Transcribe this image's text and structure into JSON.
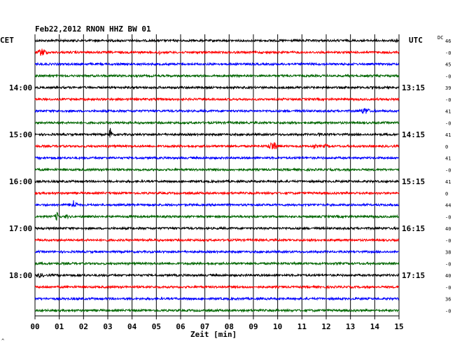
{
  "chart_data": {
    "type": "line",
    "title": "Feb22,2012   RNON HHZ BW 01",
    "xlabel": "Zeit [min]",
    "x_ticks": [
      "00",
      "01",
      "02",
      "03",
      "04",
      "05",
      "06",
      "07",
      "08",
      "09",
      "10",
      "11",
      "12",
      "13",
      "14",
      "15"
    ],
    "xlim": [
      0,
      15
    ],
    "left_axis_title": "CET",
    "right_axis_title": "UTC",
    "dc_header": "DC",
    "left_hour_labels": [
      {
        "row": 4,
        "label": "14:00"
      },
      {
        "row": 8,
        "label": "15:00"
      },
      {
        "row": 12,
        "label": "16:00"
      },
      {
        "row": 16,
        "label": "17:00"
      },
      {
        "row": 20,
        "label": "18:00"
      }
    ],
    "right_hour_labels": [
      {
        "row": 4,
        "label": "13:15"
      },
      {
        "row": 8,
        "label": "14:15"
      },
      {
        "row": 12,
        "label": "15:15"
      },
      {
        "row": 16,
        "label": "16:15"
      },
      {
        "row": 20,
        "label": "17:15"
      }
    ],
    "dc_values": [
      "46",
      "-0",
      "45",
      "-0",
      "39",
      "-0",
      "41",
      "-0",
      "41",
      "0",
      "41",
      "-0",
      "41",
      "0",
      "44",
      "-0",
      "40",
      "-0",
      "38",
      "-0",
      "40",
      "-0",
      "36",
      "-0"
    ],
    "trace_colors": [
      "#000000",
      "#ff0000",
      "#0000ff",
      "#006600"
    ],
    "events": [
      {
        "row": 0,
        "minute": 14.9,
        "amplitude": 4,
        "width": 0.05
      },
      {
        "row": 1,
        "minute": 0.3,
        "amplitude": 5,
        "width": 0.25
      },
      {
        "row": 1,
        "minute": 5.1,
        "amplitude": 3,
        "width": 0.1
      },
      {
        "row": 6,
        "minute": 13.6,
        "amplitude": 4,
        "width": 0.25
      },
      {
        "row": 8,
        "minute": 3.1,
        "amplitude": 11,
        "width": 0.08
      },
      {
        "row": 8,
        "minute": 11.7,
        "amplitude": 4,
        "width": 0.06
      },
      {
        "row": 9,
        "minute": 9.8,
        "amplitude": 6,
        "width": 0.25
      },
      {
        "row": 9,
        "minute": 11.5,
        "amplitude": 3,
        "width": 0.1
      },
      {
        "row": 9,
        "minute": 12.0,
        "amplitude": 2,
        "width": 0.15
      },
      {
        "row": 14,
        "minute": 1.6,
        "amplitude": 6,
        "width": 0.2
      },
      {
        "row": 15,
        "minute": 0.9,
        "amplitude": 6,
        "width": 0.1
      },
      {
        "row": 15,
        "minute": 1.3,
        "amplitude": 3,
        "width": 0.08
      },
      {
        "row": 20,
        "minute": 0.2,
        "amplitude": 2,
        "width": 0.2
      }
    ],
    "grid": true
  },
  "footer_mark": "^"
}
